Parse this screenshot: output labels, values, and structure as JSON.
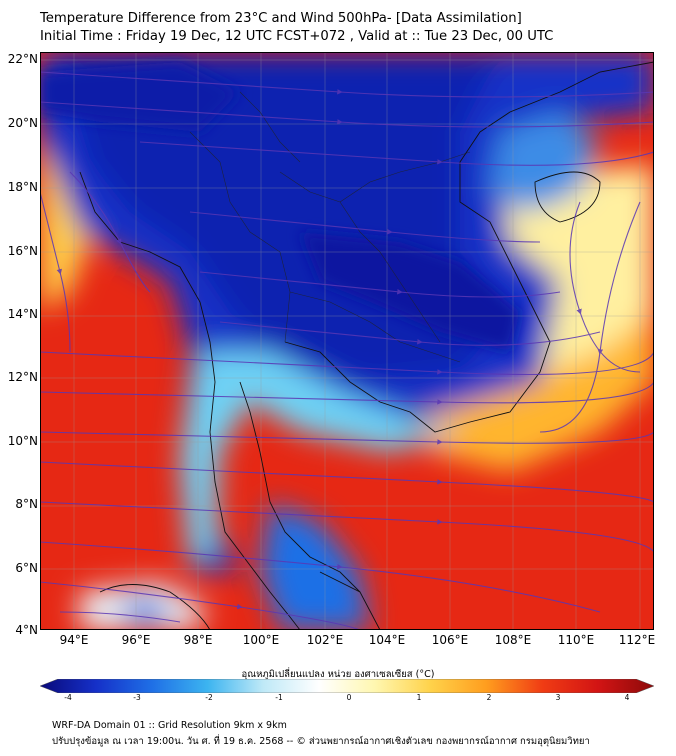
{
  "title_line1": "Temperature Difference from 23°C and Wind 500hPa- [Data Assimilation]",
  "title_line2": "Initial Time : Friday 19 Dec, 12 UTC FCST+072 , Valid at ::  Tue 23 Dec, 00 UTC",
  "lat_labels": [
    "22°N",
    "20°N",
    "18°N",
    "16°N",
    "14°N",
    "12°N",
    "10°N",
    "8°N",
    "6°N",
    "4°N"
  ],
  "lon_labels": [
    "94°E",
    "96°E",
    "98°E",
    "100°E",
    "102°E",
    "104°E",
    "106°E",
    "108°E",
    "110°E",
    "112°E"
  ],
  "colorbar": {
    "title": "อุณหภูมิเปลี่ยนแปลง หน่วย องศาเซลเซียส (°C)",
    "ticks": [
      "-4",
      "-3",
      "-2",
      "-1",
      "0",
      "1",
      "2",
      "3",
      "4"
    ],
    "colors": [
      "#0a0a7a",
      "#1530c8",
      "#1f6fe6",
      "#3cb4f0",
      "#bfe9f7",
      "#ffffff",
      "#fff7b0",
      "#ffd24a",
      "#ff9d1e",
      "#f03c14",
      "#d21414",
      "#8c0a0a"
    ]
  },
  "footer_line1": "WRF-DA Domain 01 :: Grid Resolution 9km x 9km",
  "footer_line2": "ปรับปรุงข้อมูล ณ เวลา 19:00น. วัน ศ. ที่ 19 ธ.ค. 2568 -- © ส่วนพยากรณ์อากาศเชิงตัวเลข กองพยากรณ์อากาศ กรมอุตุนิยมวิทยา"
}
